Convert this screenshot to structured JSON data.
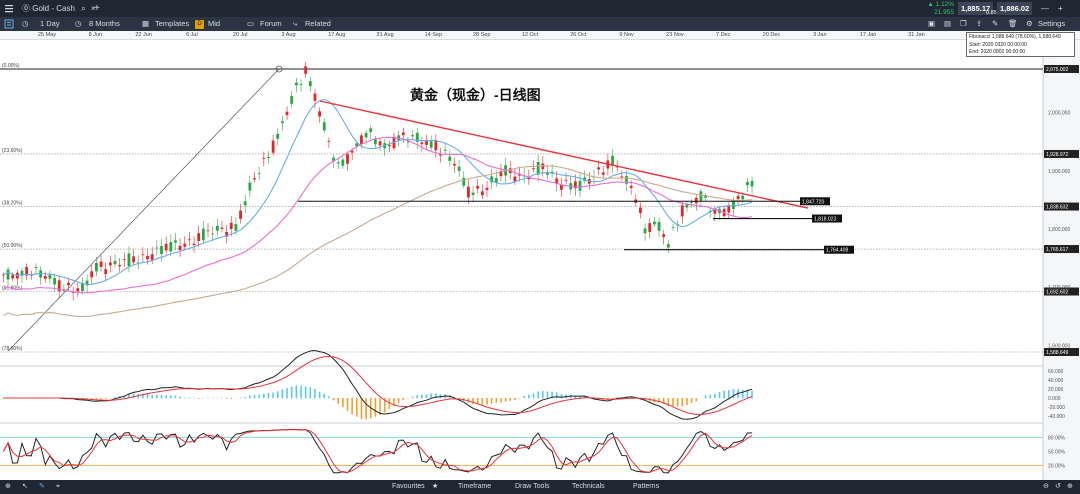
{
  "topbar": {
    "menu_icon": "menu-icon",
    "tab_label": "Gold - Cash",
    "tab_close": "×",
    "add_tab": "+",
    "change_pct": "▲ 1.12%",
    "change_abs": "21.955",
    "bid": "1,885.17",
    "ask": "1,886.02",
    "spread": "0.85"
  },
  "toolbar": {
    "timeframe": "1 Day",
    "range": "8 Months",
    "templates": "Templates",
    "price_type_badge": "D",
    "price_type": "Mid",
    "forum": "Forum",
    "related": "Related",
    "settings": "Settings"
  },
  "date_axis": [
    "25 May",
    "8 Jun",
    "22 Jun",
    "6 Jul",
    "20 Jul",
    "3 Aug",
    "17 Aug",
    "31 Aug",
    "14 Sep",
    "28 Sep",
    "12 Oct",
    "26 Oct",
    "9 Nov",
    "23 Nov",
    "7 Dec",
    "20 Dec",
    "3 Jan",
    "17 Jan",
    "31 Jan"
  ],
  "fib_info": {
    "line1": "Fibonacci 1,588.649 (78.60%), 1,588.649",
    "line2": "Start: 2020 0320 00:00:00",
    "line3": "End: 2020 0802 00:00:00"
  },
  "chart_title": "黄金（现金）-日线图",
  "fib_levels": [
    {
      "label": "(0.00%)",
      "price_tag": "2,075.002"
    },
    {
      "label": "(23.60%)",
      "price_tag": "1,928.972"
    },
    {
      "label": "(38.20%)",
      "price_tag": "1,838.632"
    },
    {
      "label": "(50.00%)",
      "price_tag": "1,765.617"
    },
    {
      "label": "(61.80%)",
      "price_tag": "1,692.602"
    },
    {
      "label": "(78.60%)",
      "price_tag": "1,588.649"
    }
  ],
  "horizontal_lines": [
    {
      "price_tag": "1,847.720"
    },
    {
      "price_tag": "1,818.023"
    },
    {
      "price_tag": "1,764.408"
    }
  ],
  "price_axis": [
    "2,100.000",
    "2,000.000",
    "1,900.000",
    "1,800.000",
    "1,700.000",
    "1,600.000"
  ],
  "macd_axis": [
    "60.000",
    "40.000",
    "20.000",
    "0.000",
    "-20.000",
    "-40.000"
  ],
  "stoch_axis": [
    "80.00%",
    "50.00%",
    "20.00%"
  ],
  "bottombar": {
    "favourites": "Favourites",
    "timeframe": "Timeframe",
    "draw_tools": "Draw Tools",
    "technicals": "Technicals",
    "patterns": "Patterns"
  },
  "colors": {
    "bull": "#27a844",
    "bear": "#e0262b",
    "trendline": "#e8343a",
    "ma_fast": "#6aaee6",
    "ma_mid": "#e66fd6",
    "ma_slow": "#c9a88f",
    "macd_hist_pos": "#5ac8e8",
    "macd_hist_neg": "#f0a030"
  }
}
